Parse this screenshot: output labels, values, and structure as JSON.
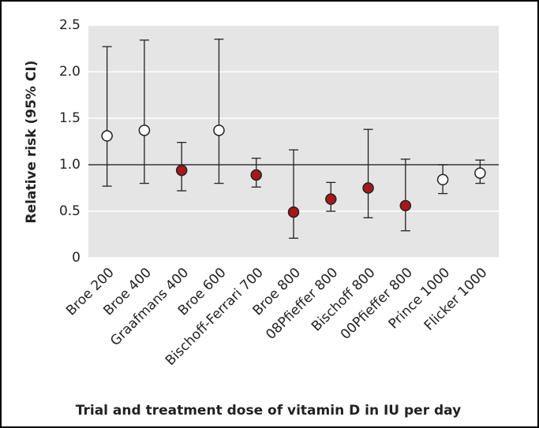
{
  "chart_data": {
    "type": "errorbar",
    "y_label": "Relative risk (95% CI)",
    "x_label": "Trial and treatment dose of vitamin D in IU per day",
    "categories": [
      "Broe 200",
      "Broe 400",
      "Graafmans 400",
      "Broe 600",
      "Bischoff-Ferrari 700",
      "Broe 800",
      "08Pfieffer 800",
      "Bischoff 800",
      "00Pfieffer 800",
      "Prince 1000",
      "Flicker 1000"
    ],
    "values": [
      1.31,
      1.37,
      0.94,
      1.37,
      0.89,
      0.49,
      0.63,
      0.75,
      0.56,
      0.84,
      0.91
    ],
    "lower": [
      0.77,
      0.8,
      0.72,
      0.8,
      0.76,
      0.21,
      0.5,
      0.43,
      0.29,
      0.69,
      0.8
    ],
    "upper": [
      2.27,
      2.34,
      1.24,
      2.35,
      1.07,
      1.16,
      0.81,
      1.38,
      1.06,
      1.0,
      1.05
    ],
    "point_colors": [
      "#ffffff",
      "#ffffff",
      "#a8171a",
      "#ffffff",
      "#a8171a",
      "#a8171a",
      "#a8171a",
      "#a8171a",
      "#a8171a",
      "#ffffff",
      "#ffffff"
    ],
    "reference_line": 1,
    "ylim": [
      0,
      2.5
    ],
    "yticks": [
      0,
      0.5,
      {
        "value": 1,
        "label": "1.0"
      },
      1.5,
      {
        "value": 2,
        "label": "2.0"
      },
      2.5
    ],
    "grid": true
  }
}
